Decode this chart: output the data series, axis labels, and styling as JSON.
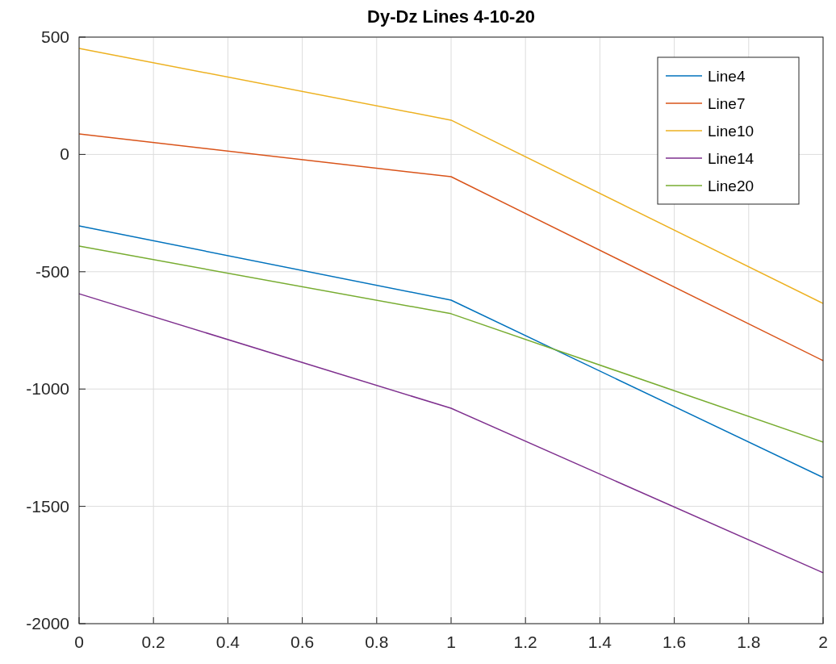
{
  "chart_data": {
    "type": "line",
    "title": "Dy-Dz Lines 4-10-20",
    "x": [
      0,
      1,
      2
    ],
    "series": [
      {
        "name": "Line4",
        "color": "#0072bd",
        "values": [
          -305,
          -621,
          -1377
        ]
      },
      {
        "name": "Line7",
        "color": "#d95319",
        "values": [
          87,
          -95,
          -879
        ]
      },
      {
        "name": "Line10",
        "color": "#edb120",
        "values": [
          452,
          146,
          -635
        ]
      },
      {
        "name": "Line14",
        "color": "#7e2f8e",
        "values": [
          -594,
          -1082,
          -1783
        ]
      },
      {
        "name": "Line20",
        "color": "#77ac30",
        "values": [
          -391,
          -679,
          -1226
        ]
      }
    ],
    "xlim": [
      0,
      2
    ],
    "xticks": [
      0,
      0.2,
      0.4,
      0.6,
      0.8,
      1,
      1.2,
      1.4,
      1.6,
      1.8,
      2
    ],
    "ylim": [
      -2000,
      500
    ],
    "yticks": [
      -2000,
      -1500,
      -1000,
      -500,
      0,
      500
    ],
    "grid": true,
    "legend": "top right",
    "marker": "none",
    "line_style": "solid"
  }
}
